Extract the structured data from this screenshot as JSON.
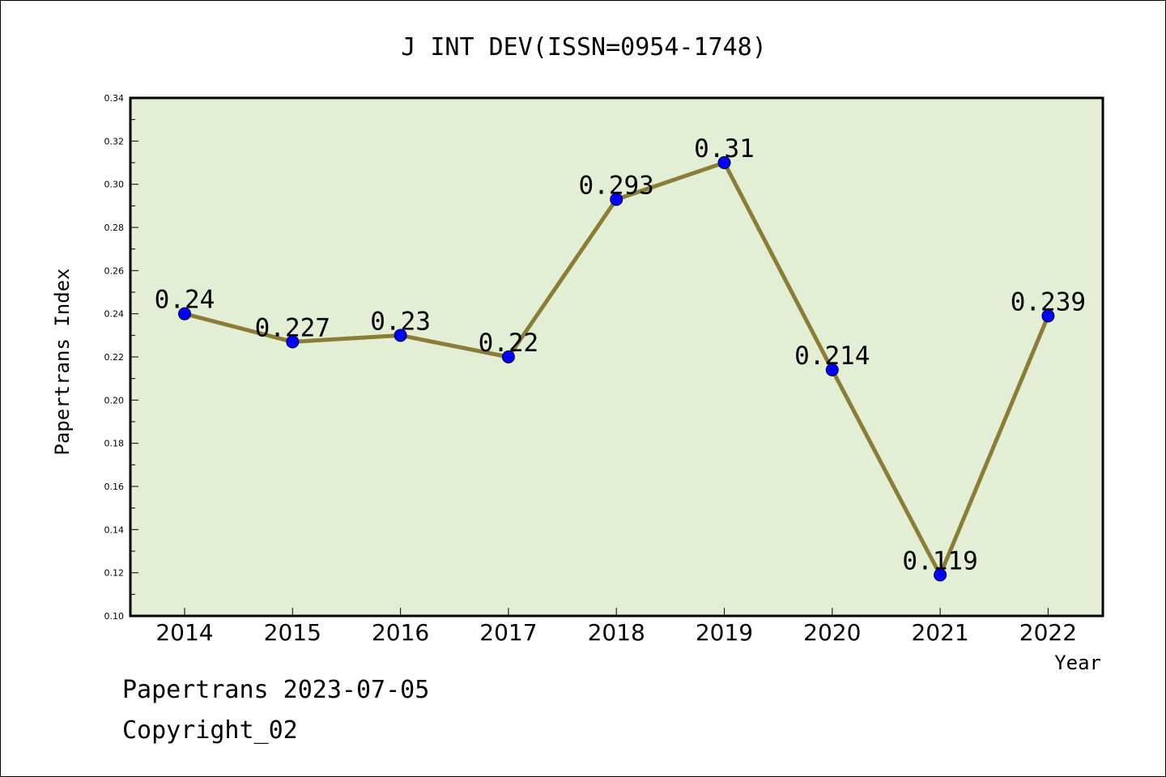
{
  "chart_data": {
    "type": "line",
    "title": "J INT DEV(ISSN=0954-1748)",
    "xlabel": "Year",
    "ylabel": "Papertrans Index",
    "categories": [
      "2014",
      "2015",
      "2016",
      "2017",
      "2018",
      "2019",
      "2020",
      "2021",
      "2022"
    ],
    "values": [
      0.24,
      0.227,
      0.23,
      0.22,
      0.293,
      0.31,
      0.214,
      0.119,
      0.239
    ],
    "data_labels": [
      "0.24",
      "0.227",
      "0.23",
      "0.22",
      "0.293",
      "0.31",
      "0.214",
      "0.119",
      "0.239"
    ],
    "ylim": [
      0.1,
      0.34
    ],
    "yticks": [
      "0.10",
      "0.12",
      "0.14",
      "0.16",
      "0.18",
      "0.20",
      "0.22",
      "0.24",
      "0.26",
      "0.28",
      "0.30",
      "0.32",
      "0.34"
    ],
    "grid": false,
    "colors": {
      "plot_background": "#e2efd4",
      "line": "#8b7d38",
      "marker": "#0000ff"
    }
  },
  "footer": {
    "line1": "Papertrans 2023-07-05",
    "line2": "Copyright_02"
  }
}
